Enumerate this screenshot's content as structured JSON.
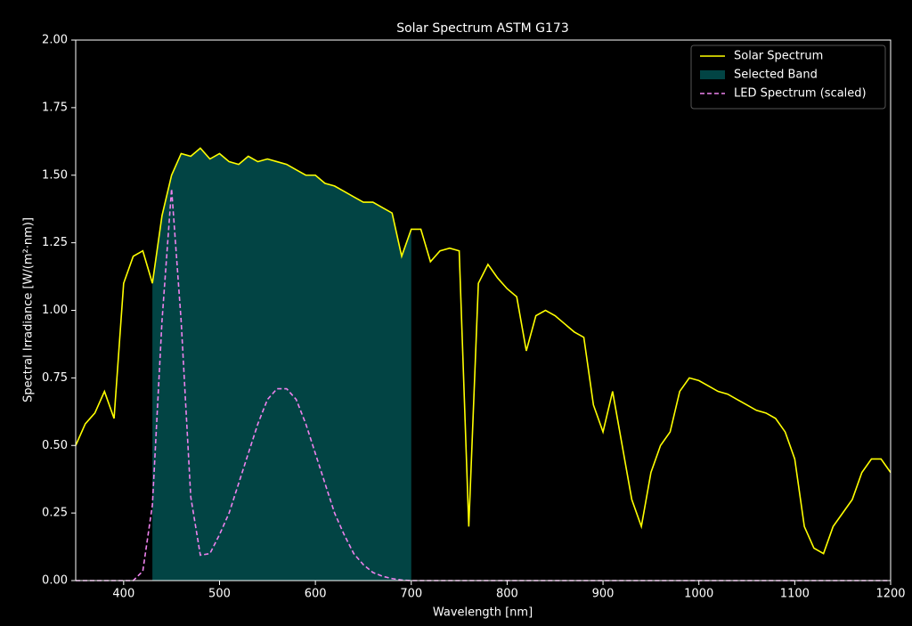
{
  "chart_data": {
    "type": "line",
    "title": "Solar Spectrum ASTM G173",
    "xlabel": "Wavelength [nm]",
    "ylabel": "Spectral Irradiance [W/(m²·nm)]",
    "x": [
      350,
      360,
      370,
      380,
      390,
      400,
      410,
      420,
      430,
      440,
      450,
      460,
      470,
      480,
      490,
      500,
      510,
      520,
      530,
      540,
      550,
      560,
      570,
      580,
      590,
      600,
      610,
      620,
      630,
      640,
      650,
      660,
      670,
      680,
      690,
      700,
      710,
      720,
      730,
      740,
      750,
      760,
      770,
      780,
      790,
      800,
      810,
      820,
      830,
      840,
      850,
      860,
      870,
      880,
      890,
      900,
      910,
      920,
      930,
      940,
      950,
      960,
      970,
      980,
      990,
      1000,
      1010,
      1020,
      1030,
      1040,
      1050,
      1060,
      1070,
      1080,
      1090,
      1100,
      1110,
      1120,
      1130,
      1140,
      1150,
      1160,
      1170,
      1180,
      1190,
      1200
    ],
    "series": [
      {
        "name": "Solar Spectrum",
        "color": "#ffff00",
        "linestyle": "solid",
        "values": [
          0.5,
          0.58,
          0.62,
          0.7,
          0.6,
          1.1,
          1.2,
          1.22,
          1.1,
          1.35,
          1.5,
          1.58,
          1.57,
          1.6,
          1.56,
          1.58,
          1.55,
          1.54,
          1.57,
          1.55,
          1.56,
          1.55,
          1.54,
          1.52,
          1.5,
          1.5,
          1.47,
          1.46,
          1.44,
          1.42,
          1.4,
          1.4,
          1.38,
          1.36,
          1.2,
          1.3,
          1.3,
          1.18,
          1.22,
          1.23,
          1.22,
          0.2,
          1.1,
          1.17,
          1.12,
          1.08,
          1.05,
          0.85,
          0.98,
          1.0,
          0.98,
          0.95,
          0.92,
          0.9,
          0.65,
          0.55,
          0.7,
          0.5,
          0.3,
          0.2,
          0.4,
          0.5,
          0.55,
          0.7,
          0.75,
          0.74,
          0.72,
          0.7,
          0.69,
          0.67,
          0.65,
          0.63,
          0.62,
          0.6,
          0.55,
          0.45,
          0.2,
          0.12,
          0.1,
          0.2,
          0.25,
          0.3,
          0.4,
          0.45,
          0.45,
          0.4
        ]
      },
      {
        "name": "Selected Band",
        "color": "#024444",
        "band": [
          430,
          700
        ]
      },
      {
        "name": "LED Spectrum (scaled)",
        "color": "#ee82ee",
        "linestyle": "dashed",
        "values": [
          0,
          0,
          0,
          0,
          0,
          0,
          0,
          0.035,
          0.28,
          0.96,
          1.45,
          0.96,
          0.31,
          0.094,
          0.1,
          0.17,
          0.25,
          0.36,
          0.47,
          0.58,
          0.67,
          0.71,
          0.71,
          0.67,
          0.58,
          0.47,
          0.36,
          0.25,
          0.17,
          0.1,
          0.059,
          0.03,
          0.016,
          0.0074,
          0.002,
          0,
          0,
          0,
          0,
          0,
          0,
          0,
          0,
          0,
          0,
          0,
          0,
          0,
          0,
          0,
          0,
          0,
          0,
          0,
          0,
          0,
          0,
          0,
          0,
          0,
          0,
          0,
          0,
          0,
          0,
          0,
          0,
          0,
          0,
          0,
          0,
          0,
          0,
          0,
          0,
          0,
          0,
          0,
          0,
          0,
          0,
          0,
          0,
          0,
          0,
          0
        ]
      }
    ],
    "xlim": [
      350,
      1200
    ],
    "xticks": [
      400,
      500,
      600,
      700,
      800,
      900,
      1000,
      1100,
      1200
    ],
    "ylim": [
      0,
      2
    ],
    "yticks": [
      {
        "value": 0,
        "label": "0.00"
      },
      {
        "value": 0.25,
        "label": "0.25"
      },
      {
        "value": 0.5,
        "label": "0.50"
      },
      {
        "value": 0.75,
        "label": "0.75"
      },
      {
        "value": 1,
        "label": "1.00"
      },
      {
        "value": 1.25,
        "label": "1.25"
      },
      {
        "value": 1.5,
        "label": "1.50"
      },
      {
        "value": 1.75,
        "label": "1.75"
      },
      {
        "value": 2,
        "label": "2.00"
      }
    ],
    "legend": "upper right"
  }
}
